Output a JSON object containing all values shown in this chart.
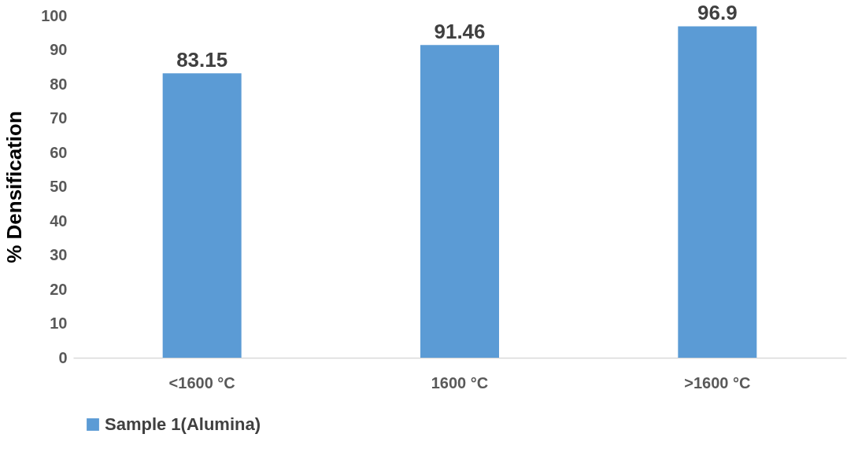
{
  "chart_data": {
    "type": "bar",
    "ylabel": "%  Densification",
    "categories": [
      "<1600 °C",
      "1600 °C",
      ">1600 °C"
    ],
    "series": [
      {
        "name": "Sample 1(Alumina)",
        "color": "#5b9bd5",
        "values": [
          83.15,
          91.46,
          96.9
        ]
      }
    ],
    "ylim": [
      0,
      100
    ],
    "yticks": [
      0,
      10,
      20,
      30,
      40,
      50,
      60,
      70,
      80,
      90,
      100
    ],
    "grid": false,
    "data_labels": true,
    "legend": "bottom"
  }
}
